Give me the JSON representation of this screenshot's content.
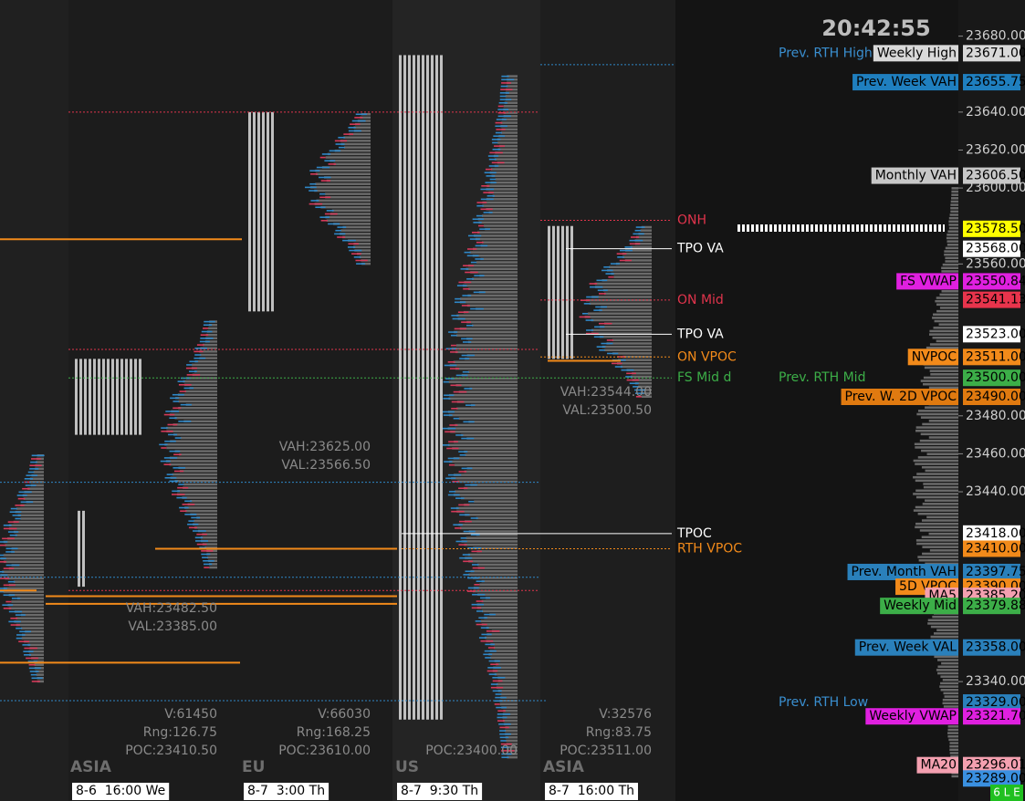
{
  "clock": "20:42:55",
  "price_axis": {
    "ylim": [
      23280,
      23700
    ],
    "yticks": [
      {
        "value": 23680,
        "label": "23680.00"
      },
      {
        "value": 23640,
        "label": "23640.00"
      },
      {
        "value": 23620,
        "label": "23620.00"
      },
      {
        "value": 23600,
        "label": "23600.00"
      },
      {
        "value": 23560,
        "label": "23560.00"
      },
      {
        "value": 23480,
        "label": "23480.00"
      },
      {
        "value": 23460,
        "label": "23460.00"
      },
      {
        "value": 23440,
        "label": "23440.00"
      },
      {
        "value": 23340,
        "label": "23340.00"
      }
    ]
  },
  "price_tags": [
    {
      "name": "Weekly High",
      "value": 23671,
      "label": "23671.00",
      "color": "#d9d9d9"
    },
    {
      "name": "Prev. Week VAH",
      "value": 23655.75,
      "label": "23655.75",
      "color": "#1f7fbf"
    },
    {
      "name": "Monthly VAH",
      "value": 23606.5,
      "label": "23606.50",
      "color": "#c8c8c8"
    },
    {
      "value": 23578.5,
      "label": "23578.50",
      "color": "#ffff00"
    },
    {
      "value": 23568,
      "label": "23568.00",
      "color": "#ffffff"
    },
    {
      "name": "FS VWAP",
      "value": 23550.84,
      "label": "23550.84",
      "color": "#e020e0"
    },
    {
      "value": 23541.13,
      "label": "23541.13",
      "color": "#e8344c"
    },
    {
      "value": 23523,
      "label": "23523.00",
      "color": "#ffffff"
    },
    {
      "name": "NVPOC",
      "value": 23511,
      "label": "23511.00",
      "color": "#f28a1a"
    },
    {
      "value": 23500,
      "label": "23500.00",
      "color": "#3cae48"
    },
    {
      "name": "Prev. W. 2D VPOC",
      "value": 23490,
      "label": "23490.00",
      "color": "#e07a10"
    },
    {
      "value": 23418,
      "label": "23418.00",
      "color": "#ffffff"
    },
    {
      "value": 23410,
      "label": "23410.00",
      "color": "#f28a1a"
    },
    {
      "name": "Prev. Month VAH",
      "value": 23397.75,
      "label": "23397.75",
      "color": "#2a80bb"
    },
    {
      "name": "5D VPOC",
      "value": 23390,
      "label": "23390.00",
      "color": "#f28a1a"
    },
    {
      "name": "MA5",
      "value": 23385.2,
      "label": "23385.20",
      "color": "#f4a0b0"
    },
    {
      "name": "Weekly Mid",
      "value": 23379.88,
      "label": "23379.88",
      "color": "#3cae48"
    },
    {
      "name": "Prev. Week VAL",
      "value": 23358,
      "label": "23358.00",
      "color": "#2a80bb"
    },
    {
      "value": 23329,
      "label": "23329.00",
      "color": "#2a80bb"
    },
    {
      "name": "Weekly VWAP",
      "value": 23321.7,
      "label": "23321.70",
      "color": "#e020e0"
    },
    {
      "name": "MA20",
      "value": 23296.01,
      "label": "23296.01",
      "color": "#f4a0b0"
    },
    {
      "value": 23289,
      "label": "23289.00",
      "color": "#3a90e0"
    }
  ],
  "reference_texts": [
    {
      "text": "Prev. RTH High",
      "value": 23671,
      "color": "#3a8fd0"
    },
    {
      "text": "Prev. RTH Mid",
      "value": 23500,
      "color": "#3cae48"
    },
    {
      "text": "Prev. RTH Low",
      "value": 23329,
      "color": "#3a8fd0"
    }
  ],
  "levels": [
    {
      "text": "ONH",
      "value": 23583,
      "color": "#e0344c"
    },
    {
      "text": "TPO VA",
      "value": 23568,
      "color": "#ffffff"
    },
    {
      "text": "ON Mid",
      "value": 23541,
      "color": "#e0344c"
    },
    {
      "text": "TPO VA",
      "value": 23523,
      "color": "#ffffff"
    },
    {
      "text": "ON VPOC",
      "value": 23511,
      "color": "#f28a1a"
    },
    {
      "text": "FS Mid d",
      "value": 23500,
      "color": "#3cae48"
    },
    {
      "text": "TPOC",
      "value": 23418,
      "color": "#ffffff"
    },
    {
      "text": "RTH VPOC",
      "value": 23410,
      "color": "#f28a1a"
    }
  ],
  "sessions": [
    {
      "name": "ASIA",
      "start": "8-6  16:00 We",
      "value_area": [
        "VAH:23482.50",
        "VAL:23385.00"
      ],
      "stats": [
        "V:61450",
        "Rng:126.75",
        "POC:23410.50"
      ]
    },
    {
      "name": "EU",
      "start": "8-7  3:00 Th",
      "value_area": [
        "VAH:23625.00",
        "VAL:23566.50"
      ],
      "stats": [
        "V:66030",
        "Rng:168.25",
        "POC:23610.00"
      ]
    },
    {
      "name": "US",
      "start": "8-7  9:30 Th",
      "value_area": [],
      "stats": [
        "POC:23400.00"
      ]
    },
    {
      "name": "ASIA",
      "start": "8-7  16:00 Th",
      "value_area": [
        "VAH:23544.00",
        "VAL:23500.50"
      ],
      "stats": [
        "V:32576",
        "Rng:83.75",
        "POC:23511.00"
      ]
    }
  ],
  "badge": "6 L E"
}
